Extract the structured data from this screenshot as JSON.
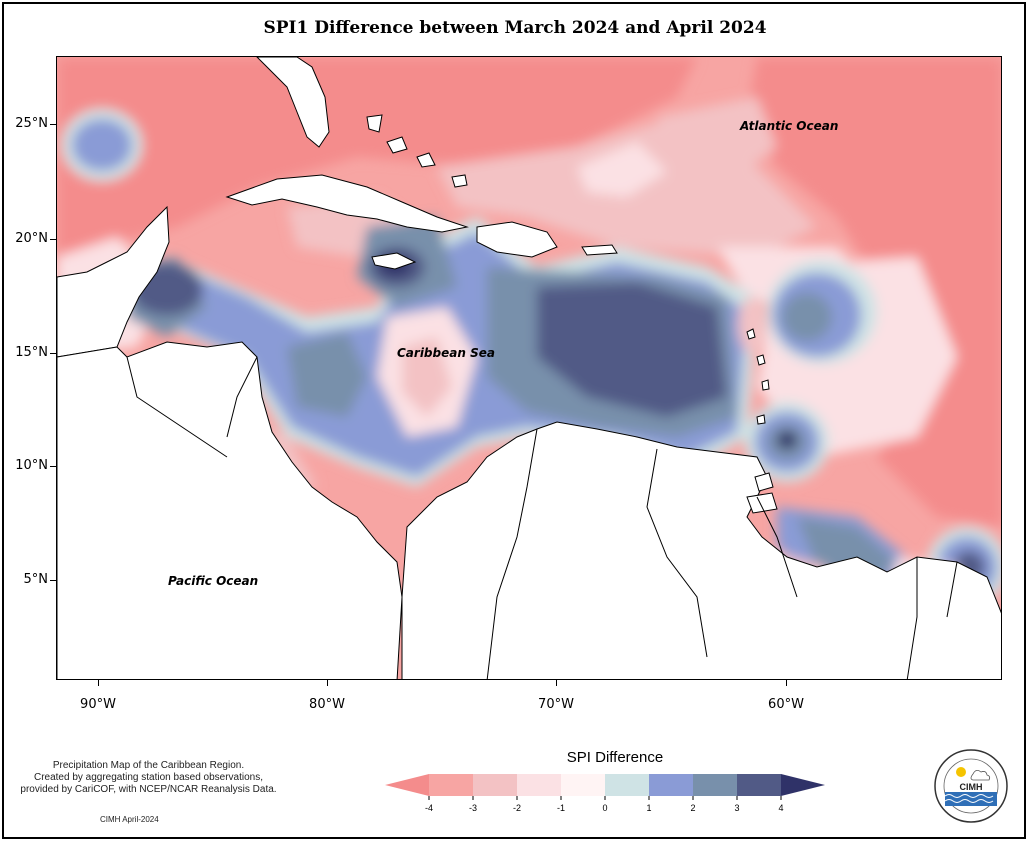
{
  "title": "SPI1 Difference between March 2024 and April 2024",
  "map_labels": {
    "atlantic": "Atlantic Ocean",
    "caribbean": "Caribbean Sea",
    "pacific": "Pacific Ocean"
  },
  "axes": {
    "y_labels": [
      "25°N",
      "20°N",
      "15°N",
      "10°N",
      "5°N"
    ],
    "x_labels": [
      "90°W",
      "80°W",
      "70°W",
      "60°W"
    ]
  },
  "legend": {
    "title": "SPI Difference",
    "ticks": [
      "-4",
      "-3",
      "-2",
      "-1",
      "0",
      "1",
      "2",
      "3",
      "4"
    ],
    "colors": [
      "#f48c8c",
      "#f7a5a3",
      "#f3c2c4",
      "#fbe1e4",
      "#fff4f4",
      "#cfe3e5",
      "#8a9bd6",
      "#7890ab",
      "#515a86",
      "#2f3268"
    ]
  },
  "credits": {
    "lines": [
      "Precipitation Map of the Caribbean Region.",
      "Created by aggregating station based observations,",
      "provided by CariCOF, with NCEP/NCAR Reanalysis Data."
    ],
    "date": "CIMH April-2024"
  },
  "logo": {
    "text": "CIMH",
    "ring_text": "Caribbean Institute for Meteorology and Hydrology"
  }
}
